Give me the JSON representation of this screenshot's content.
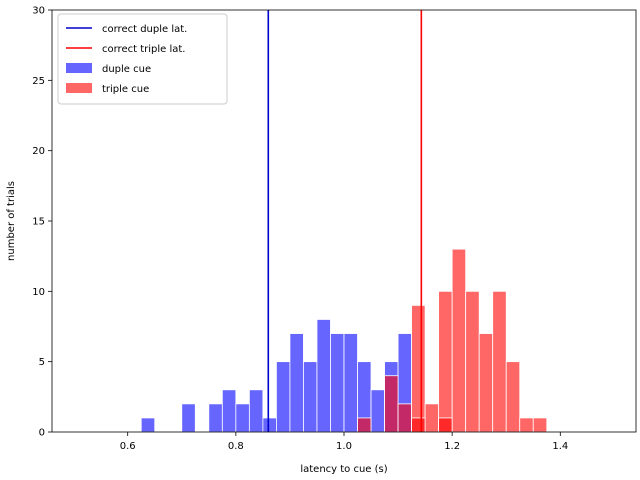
{
  "chart_data": {
    "type": "histogram",
    "xlabel": "latency to cue (s)",
    "ylabel": "number of trials",
    "xlim": [
      0.46,
      1.54
    ],
    "ylim": [
      0,
      30
    ],
    "xticks": [
      0.6,
      0.8,
      1.0,
      1.2,
      1.4
    ],
    "xtick_labels": [
      "0.6",
      "0.8",
      "1.0",
      "1.2",
      "1.4"
    ],
    "yticks": [
      0,
      5,
      10,
      15,
      20,
      25,
      30
    ],
    "ytick_labels": [
      "0",
      "5",
      "10",
      "15",
      "20",
      "25",
      "30"
    ],
    "bin_width": 0.025,
    "legend_position": "upper left",
    "series": [
      {
        "name": "duple cue",
        "kind": "bars",
        "color": "#0000ff",
        "alpha": 0.6,
        "bars": [
          [
            0.625,
            1
          ],
          [
            0.7,
            2
          ],
          [
            0.75,
            2
          ],
          [
            0.775,
            3
          ],
          [
            0.8,
            2
          ],
          [
            0.825,
            3
          ],
          [
            0.85,
            1
          ],
          [
            0.875,
            5
          ],
          [
            0.9,
            7
          ],
          [
            0.925,
            5
          ],
          [
            0.95,
            8
          ],
          [
            0.975,
            7
          ],
          [
            1.0,
            7
          ],
          [
            1.025,
            5
          ],
          [
            1.05,
            3
          ],
          [
            1.075,
            5
          ],
          [
            1.1,
            7
          ]
        ]
      },
      {
        "name": "triple cue",
        "kind": "bars",
        "color": "#ff0000",
        "alpha": 0.6,
        "bars": [
          [
            1.025,
            1
          ],
          [
            1.075,
            4
          ],
          [
            1.1,
            2
          ],
          [
            1.125,
            9
          ],
          [
            1.15,
            2
          ],
          [
            1.175,
            10
          ],
          [
            1.2,
            13
          ],
          [
            1.225,
            10
          ],
          [
            1.25,
            7
          ],
          [
            1.275,
            10
          ],
          [
            1.3,
            5
          ],
          [
            1.325,
            1
          ],
          [
            1.35,
            1
          ],
          [
            1.175,
            1
          ],
          [
            1.125,
            1
          ]
        ]
      },
      {
        "name": "correct duple lat.",
        "kind": "vline",
        "color": "#0000cc",
        "x": 0.86
      },
      {
        "name": "correct triple lat.",
        "kind": "vline",
        "color": "#ff0000",
        "x": 1.143
      }
    ],
    "legend": [
      {
        "label": "correct duple lat.",
        "kind": "line",
        "color": "#0000cc"
      },
      {
        "label": "correct triple lat.",
        "kind": "line",
        "color": "#ff0000"
      },
      {
        "label": "duple cue",
        "kind": "patch",
        "color": "#0000ff"
      },
      {
        "label": "triple cue",
        "kind": "patch",
        "color": "#ff0000"
      }
    ]
  }
}
